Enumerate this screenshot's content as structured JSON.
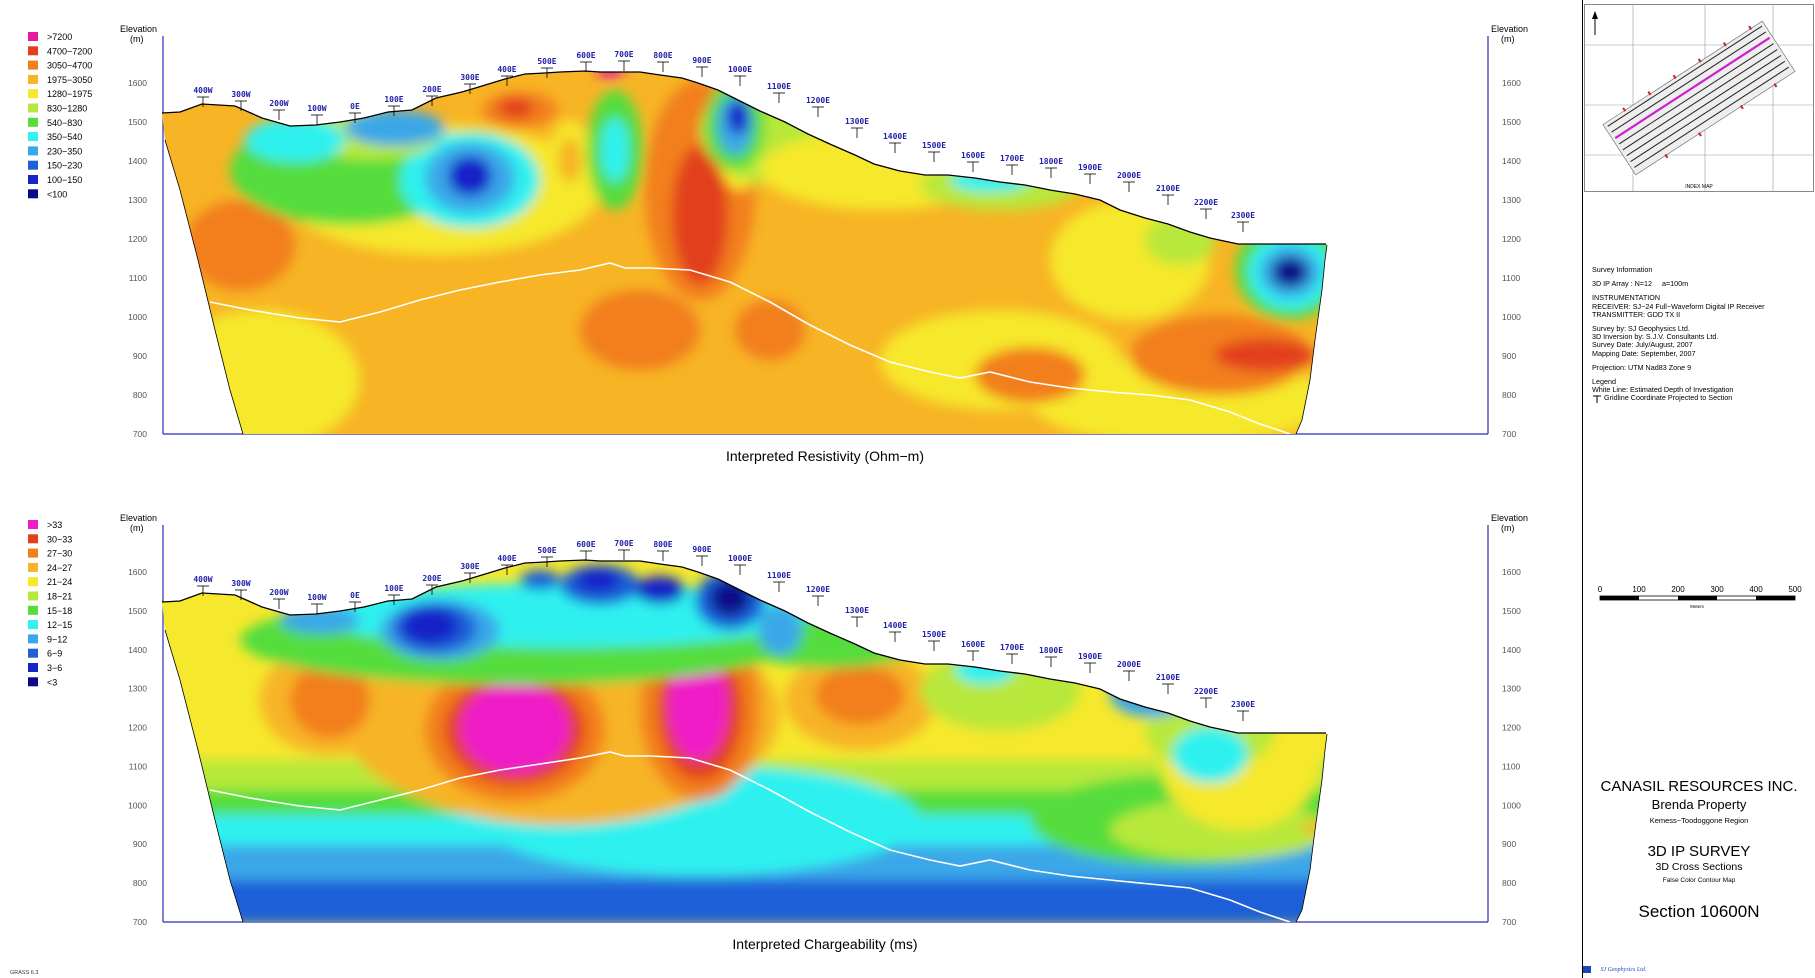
{
  "resistivity": {
    "axis_title": "Elevation\n(m)",
    "axis_title_line1": "Elevation",
    "axis_title_line2": "(m)",
    "ticks": [
      "1600",
      "1500",
      "1400",
      "1300",
      "1200",
      "1100",
      "1000",
      "900",
      "800",
      "700"
    ],
    "caption": "Interpreted Resistivity (Ohm−m)",
    "legend": [
      {
        "label": ">7200",
        "color": "#e8189a"
      },
      {
        "label": "4700−7200",
        "color": "#e2401a"
      },
      {
        "label": "3050−4700",
        "color": "#f27f1c"
      },
      {
        "label": "1975−3050",
        "color": "#f7b425"
      },
      {
        "label": "1280−1975",
        "color": "#f6e82c"
      },
      {
        "label": "830−1280",
        "color": "#b8e83a"
      },
      {
        "label": "540−830",
        "color": "#55dd3c"
      },
      {
        "label": "350−540",
        "color": "#2ff1ef"
      },
      {
        "label": "230−350",
        "color": "#3aa7e8"
      },
      {
        "label": "150−230",
        "color": "#1f5fd8"
      },
      {
        "label": "100−150",
        "color": "#1424c8"
      },
      {
        "label": "<100",
        "color": "#0a0a88"
      }
    ]
  },
  "chargeability": {
    "axis_title_line1": "Elevation",
    "axis_title_line2": "(m)",
    "ticks": [
      "1600",
      "1500",
      "1400",
      "1300",
      "1200",
      "1100",
      "1000",
      "900",
      "800",
      "700"
    ],
    "caption": "Interpreted Chargeability (ms)",
    "legend": [
      {
        "label": ">33",
        "color": "#f01cc7"
      },
      {
        "label": "30−33",
        "color": "#e2401a"
      },
      {
        "label": "27−30",
        "color": "#f27f1c"
      },
      {
        "label": "24−27",
        "color": "#f7b425"
      },
      {
        "label": "21−24",
        "color": "#f6e82c"
      },
      {
        "label": "18−21",
        "color": "#b8e83a"
      },
      {
        "label": "15−18",
        "color": "#55dd3c"
      },
      {
        "label": "12−15",
        "color": "#2ff1ef"
      },
      {
        "label": "9−12",
        "color": "#3aa7e8"
      },
      {
        "label": "6−9",
        "color": "#1f5fd8"
      },
      {
        "label": "3−6",
        "color": "#1424c8"
      },
      {
        "label": "<3",
        "color": "#0a0a88"
      }
    ]
  },
  "stations": [
    "400W",
    "300W",
    "200W",
    "100W",
    "0E",
    "100E",
    "200E",
    "300E",
    "400E",
    "500E",
    "600E",
    "700E",
    "800E",
    "900E",
    "1000E",
    "1100E",
    "1200E",
    "1300E",
    "1400E",
    "1500E",
    "1600E",
    "1700E",
    "1800E",
    "1900E",
    "2000E",
    "2100E",
    "2200E",
    "2300E"
  ],
  "index_map": {
    "title": "INDEX MAP"
  },
  "survey_info": {
    "heading": "Survey Information",
    "array": "3D IP Array : N=12     a=100m",
    "instrumentation": "INSTRUMENTATION",
    "receiver": "RECEIVER: SJ−24 Full−Waveform Digital IP Receiver",
    "transmitter": "TRANSMITTER: GDD TX II",
    "survey_by": "Survey by: SJ Geophysics Ltd.",
    "inversion_by": "3D Inversion by: S.J.V. Consultants Ltd.",
    "survey_date": "Survey Date:  July/August, 2007",
    "mapping_date": "Mapping Date: September, 2007",
    "projection": "Projection: UTM Nad83 Zone 9",
    "legend_heading": "Legend",
    "white_line": "White Line: Estimated Depth of Investigation",
    "gridline": "Gridline Coordinate Projected to Section"
  },
  "scale_bar": {
    "labels": [
      "0",
      "100",
      "200",
      "300",
      "400",
      "500"
    ],
    "unit": "Meters"
  },
  "title_block": {
    "company": "CANASIL RESOURCES INC.",
    "property": "Brenda Property",
    "region": "Kemess−Toodoggone Region",
    "survey": "3D IP SURVEY",
    "cross_sections": "3D Cross Sections",
    "map_type": "False Color Contour Map",
    "section": "Section 10600N"
  },
  "footer": {
    "logo_text": "SJ Geophysics Ltd.",
    "software": "GRASS 6.3"
  },
  "colors": {
    "axis_blue": "#2b2bbf",
    "station_blue": "#1f1fa8",
    "background_yellow": "#f6e82c",
    "background_orange": "#f7b425"
  }
}
